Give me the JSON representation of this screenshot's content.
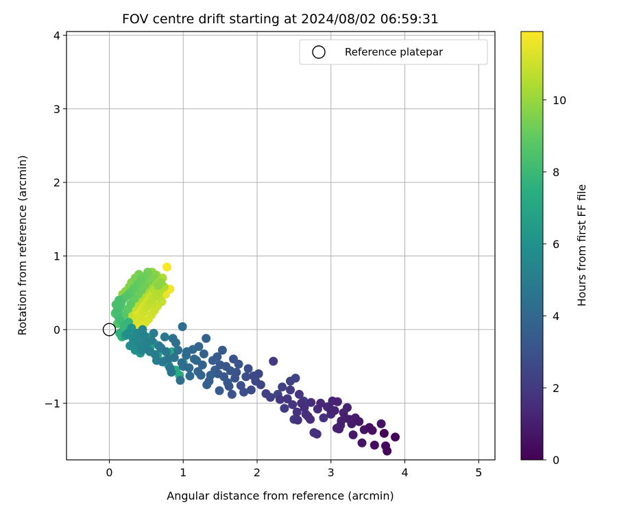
{
  "chart_data": {
    "type": "scatter",
    "title": "FOV centre drift starting at 2024/08/02 06:59:31",
    "xlabel": "Angular distance from reference (arcmin)",
    "ylabel": "Rotation from reference (arcmin)",
    "xlim": [
      -0.58,
      5.22
    ],
    "ylim": [
      -1.77,
      4.05
    ],
    "xticks": [
      0,
      1,
      2,
      3,
      4,
      5
    ],
    "yticks": [
      -1,
      0,
      1,
      2,
      3,
      4
    ],
    "grid": true,
    "legend": {
      "placement": "top-right",
      "entries": [
        "Reference platepar"
      ]
    },
    "colorbar": {
      "label": "Hours from first FF file",
      "colormap": "viridis",
      "range": [
        0,
        11.9
      ],
      "ticks": [
        0,
        2,
        4,
        6,
        8,
        10
      ]
    },
    "reference_point": {
      "x": 0.0,
      "y": 0.0,
      "marker": "open-circle"
    },
    "series": [
      {
        "points": [
          [
            3.72,
            -1.41
          ],
          [
            3.87,
            -1.46
          ],
          [
            3.76,
            -1.65
          ],
          [
            3.74,
            -1.58
          ],
          [
            3.59,
            -1.57
          ],
          [
            3.52,
            -1.33
          ],
          [
            3.68,
            -1.28
          ],
          [
            3.42,
            -1.54
          ],
          [
            3.3,
            -1.43
          ],
          [
            3.25,
            -1.22
          ],
          [
            3.13,
            -1.3
          ],
          [
            3.08,
            -1.34
          ],
          [
            3.17,
            -1.13
          ],
          [
            3.22,
            -1.06
          ],
          [
            3.02,
            -0.97
          ],
          [
            3.09,
            -0.98
          ],
          [
            2.95,
            -1.05
          ],
          [
            3.0,
            -1.15
          ],
          [
            2.82,
            -1.08
          ],
          [
            2.73,
            -0.99
          ],
          [
            2.64,
            -1.06
          ],
          [
            2.9,
            -1.2
          ],
          [
            2.81,
            -1.42
          ],
          [
            2.77,
            -1.4
          ],
          [
            2.54,
            -1.12
          ],
          [
            2.48,
            -1.02
          ],
          [
            2.41,
            -0.94
          ],
          [
            2.57,
            -0.88
          ],
          [
            2.31,
            -0.95
          ],
          [
            2.22,
            -0.43
          ],
          [
            2.45,
            -0.82
          ],
          [
            2.37,
            -1.07
          ],
          [
            2.5,
            -1.22
          ],
          [
            2.63,
            -0.97
          ],
          [
            2.18,
            -0.92
          ],
          [
            2.12,
            -0.87
          ],
          [
            3.05,
            -1.1
          ],
          [
            3.33,
            -1.2
          ],
          [
            3.45,
            -1.36
          ],
          [
            3.56,
            -1.37
          ],
          [
            2.66,
            -1.15
          ],
          [
            2.72,
            -1.22
          ],
          [
            3.14,
            -1.24
          ],
          [
            3.19,
            -1.2
          ],
          [
            2.86,
            -1.0
          ],
          [
            2.99,
            -1.08
          ],
          [
            3.11,
            -1.35
          ],
          [
            3.28,
            -1.28
          ],
          [
            2.34,
            -0.78
          ],
          [
            2.45,
            -0.7
          ],
          [
            2.52,
            -0.66
          ],
          [
            2.28,
            -0.88
          ],
          [
            2.6,
            -1.0
          ],
          [
            2.69,
            -1.18
          ],
          [
            2.55,
            -1.23
          ],
          [
            3.38,
            -1.25
          ]
        ],
        "hours": [
          0.05,
          0.1,
          0.2,
          0.3,
          0.4,
          0.5,
          0.6,
          0.7,
          0.8,
          0.9,
          1.0,
          1.05,
          1.1,
          1.15,
          1.2,
          1.25,
          1.3,
          1.35,
          1.4,
          1.45,
          1.5,
          1.55,
          1.6,
          1.65,
          1.7,
          1.75,
          1.8,
          1.85,
          1.9,
          1.95,
          2.0,
          2.05,
          2.1,
          2.15,
          2.2,
          2.25,
          1.22,
          0.95,
          0.65,
          0.45,
          1.52,
          1.48,
          1.08,
          1.02,
          1.28,
          1.18,
          1.12,
          0.88,
          2.3,
          2.35,
          2.4,
          2.45,
          1.62,
          1.58,
          1.68,
          0.78
        ]
      },
      {
        "points": [
          [
            2.05,
            -0.75
          ],
          [
            1.98,
            -0.7
          ],
          [
            1.92,
            -0.82
          ],
          [
            1.85,
            -0.64
          ],
          [
            1.78,
            -0.76
          ],
          [
            1.72,
            -0.58
          ],
          [
            1.66,
            -0.88
          ],
          [
            1.6,
            -0.72
          ],
          [
            1.55,
            -0.64
          ],
          [
            1.49,
            -0.83
          ],
          [
            1.43,
            -0.55
          ],
          [
            1.37,
            -0.62
          ],
          [
            1.32,
            -0.75
          ],
          [
            1.26,
            -0.48
          ],
          [
            1.2,
            -0.57
          ],
          [
            1.15,
            -0.4
          ],
          [
            1.09,
            -0.63
          ],
          [
            1.04,
            -0.35
          ],
          [
            0.98,
            -0.45
          ],
          [
            0.93,
            -0.28
          ],
          [
            0.88,
            -0.38
          ],
          [
            0.82,
            -0.52
          ],
          [
            0.77,
            -0.3
          ],
          [
            0.72,
            -0.44
          ],
          [
            0.67,
            -0.22
          ],
          [
            0.62,
            -0.34
          ],
          [
            0.57,
            -0.15
          ],
          [
            0.52,
            -0.27
          ],
          [
            0.47,
            -0.08
          ],
          [
            0.42,
            -0.2
          ],
          [
            0.37,
            -0.05
          ],
          [
            0.34,
            -0.18
          ],
          [
            0.99,
            0.04
          ],
          [
            1.31,
            -0.12
          ],
          [
            1.53,
            -0.28
          ],
          [
            1.75,
            -0.47
          ],
          [
            1.64,
            -0.56
          ],
          [
            1.88,
            -0.53
          ],
          [
            2.02,
            -0.6
          ],
          [
            1.46,
            -0.37
          ],
          [
            1.21,
            -0.23
          ],
          [
            0.9,
            -0.18
          ],
          [
            0.75,
            -0.1
          ],
          [
            1.05,
            -0.3
          ],
          [
            1.13,
            -0.27
          ],
          [
            1.4,
            -0.42
          ],
          [
            1.58,
            -0.5
          ],
          [
            1.7,
            -0.66
          ],
          [
            1.82,
            -0.85
          ],
          [
            1.95,
            -0.63
          ],
          [
            0.64,
            -0.42
          ],
          [
            0.84,
            -0.58
          ],
          [
            0.96,
            -0.69
          ],
          [
            1.08,
            -0.52
          ],
          [
            1.24,
            -0.62
          ],
          [
            1.35,
            -0.7
          ],
          [
            1.47,
            -0.6
          ],
          [
            1.62,
            -0.77
          ],
          [
            0.55,
            -0.3
          ],
          [
            0.44,
            -0.28
          ],
          [
            0.39,
            -0.12
          ],
          [
            0.7,
            -0.25
          ],
          [
            0.8,
            -0.4
          ],
          [
            1.0,
            -0.5
          ],
          [
            1.18,
            -0.42
          ],
          [
            1.28,
            -0.33
          ],
          [
            1.5,
            -0.48
          ],
          [
            1.68,
            -0.4
          ],
          [
            0.86,
            -0.12
          ],
          [
            0.6,
            -0.05
          ],
          [
            0.5,
            -0.17
          ],
          [
            0.45,
            -0.0
          ]
        ],
        "hours": [
          2.5,
          2.6,
          2.7,
          2.8,
          2.9,
          3.0,
          3.1,
          3.2,
          3.3,
          3.4,
          3.5,
          3.6,
          3.7,
          3.8,
          3.9,
          4.0,
          4.1,
          4.2,
          4.3,
          4.4,
          4.5,
          4.6,
          4.7,
          4.8,
          4.9,
          5.0,
          5.1,
          5.2,
          5.3,
          5.4,
          5.5,
          5.6,
          4.3,
          3.75,
          3.35,
          3.0,
          3.15,
          2.8,
          2.55,
          3.4,
          3.85,
          4.35,
          4.7,
          4.15,
          4.05,
          3.5,
          3.2,
          3.05,
          2.85,
          2.65,
          4.95,
          4.55,
          4.3,
          4.1,
          3.8,
          3.6,
          3.4,
          3.15,
          5.1,
          5.3,
          5.45,
          4.8,
          4.5,
          4.25,
          3.95,
          3.75,
          3.35,
          3.05,
          4.45,
          5.0,
          5.25,
          5.35
        ]
      },
      {
        "points": [
          [
            0.32,
            -0.12
          ],
          [
            0.28,
            -0.22
          ],
          [
            0.25,
            -0.05
          ],
          [
            0.35,
            -0.28
          ],
          [
            0.3,
            0.02
          ],
          [
            0.22,
            -0.08
          ],
          [
            0.38,
            -0.15
          ],
          [
            0.42,
            -0.32
          ],
          [
            0.46,
            -0.2
          ],
          [
            0.5,
            -0.1
          ],
          [
            0.55,
            -0.25
          ],
          [
            0.6,
            -0.18
          ],
          [
            0.65,
            -0.35
          ],
          [
            0.7,
            -0.28
          ],
          [
            0.75,
            -0.42
          ],
          [
            0.8,
            -0.48
          ],
          [
            0.85,
            -0.3
          ],
          [
            0.9,
            -0.55
          ],
          [
            0.95,
            -0.62
          ],
          [
            1.0,
            -0.45
          ],
          [
            0.26,
            0.1
          ],
          [
            0.2,
            0.05
          ],
          [
            0.18,
            -0.02
          ],
          [
            0.15,
            0.12
          ],
          [
            0.12,
            0.18
          ],
          [
            0.1,
            0.25
          ],
          [
            0.14,
            0.3
          ],
          [
            0.16,
            0.36
          ],
          [
            0.19,
            0.42
          ],
          [
            0.24,
            0.46
          ],
          [
            0.28,
            0.5
          ],
          [
            0.33,
            0.56
          ],
          [
            0.38,
            0.62
          ],
          [
            0.43,
            0.68
          ],
          [
            0.47,
            0.72
          ],
          [
            0.52,
            0.78
          ],
          [
            0.4,
            0.75
          ],
          [
            0.35,
            0.7
          ],
          [
            0.3,
            0.64
          ],
          [
            0.27,
            0.58
          ],
          [
            0.22,
            0.52
          ],
          [
            0.18,
            0.48
          ],
          [
            0.13,
            0.4
          ],
          [
            0.09,
            0.34
          ],
          [
            0.08,
            0.22
          ],
          [
            0.11,
            0.08
          ],
          [
            0.14,
            -0.05
          ],
          [
            0.17,
            -0.1
          ],
          [
            0.2,
            0.2
          ],
          [
            0.25,
            0.28
          ],
          [
            0.29,
            0.35
          ],
          [
            0.34,
            0.42
          ],
          [
            0.39,
            0.48
          ],
          [
            0.44,
            0.54
          ],
          [
            0.48,
            0.6
          ],
          [
            0.53,
            0.66
          ],
          [
            0.57,
            0.7
          ],
          [
            0.61,
            0.74
          ],
          [
            0.66,
            0.6
          ],
          [
            0.7,
            0.64
          ]
        ],
        "hours": [
          5.6,
          5.7,
          5.8,
          5.9,
          6.0,
          6.1,
          6.2,
          6.3,
          6.4,
          6.5,
          6.6,
          6.7,
          6.8,
          6.9,
          7.0,
          7.1,
          7.2,
          7.3,
          7.4,
          7.5,
          7.8,
          7.9,
          8.0,
          8.1,
          8.2,
          8.3,
          8.4,
          8.5,
          8.6,
          8.7,
          8.8,
          8.9,
          9.0,
          9.1,
          9.2,
          9.3,
          9.4,
          9.5,
          9.6,
          9.7,
          9.8,
          9.9,
          8.35,
          8.45,
          8.55,
          8.65,
          7.6,
          7.7,
          8.75,
          8.85,
          8.95,
          9.05,
          9.15,
          9.25,
          9.35,
          9.45,
          9.55,
          9.65,
          9.75,
          9.85
        ]
      },
      {
        "points": [
          [
            0.58,
            0.78
          ],
          [
            0.62,
            0.72
          ],
          [
            0.66,
            0.66
          ],
          [
            0.7,
            0.62
          ],
          [
            0.74,
            0.58
          ],
          [
            0.68,
            0.52
          ],
          [
            0.63,
            0.46
          ],
          [
            0.58,
            0.4
          ],
          [
            0.54,
            0.35
          ],
          [
            0.5,
            0.3
          ],
          [
            0.46,
            0.24
          ],
          [
            0.42,
            0.18
          ],
          [
            0.38,
            0.12
          ],
          [
            0.34,
            0.08
          ],
          [
            0.3,
            0.16
          ],
          [
            0.26,
            0.22
          ],
          [
            0.32,
            0.3
          ],
          [
            0.36,
            0.36
          ],
          [
            0.4,
            0.42
          ],
          [
            0.44,
            0.48
          ],
          [
            0.48,
            0.54
          ],
          [
            0.52,
            0.6
          ],
          [
            0.56,
            0.64
          ],
          [
            0.6,
            0.56
          ],
          [
            0.64,
            0.5
          ],
          [
            0.67,
            0.44
          ],
          [
            0.71,
            0.38
          ],
          [
            0.65,
            0.32
          ],
          [
            0.61,
            0.26
          ],
          [
            0.57,
            0.2
          ],
          [
            0.53,
            0.14
          ],
          [
            0.49,
            0.1
          ],
          [
            0.45,
            0.04
          ],
          [
            0.41,
            0.0
          ],
          [
            0.37,
            -0.03
          ],
          [
            0.33,
            0.03
          ],
          [
            0.29,
            0.09
          ],
          [
            0.78,
            0.85
          ],
          [
            0.82,
            0.55
          ],
          [
            0.76,
            0.48
          ],
          [
            0.72,
            0.7
          ],
          [
            0.64,
            0.74
          ],
          [
            0.55,
            0.5
          ],
          [
            0.51,
            0.44
          ],
          [
            0.47,
            0.38
          ],
          [
            0.43,
            0.32
          ],
          [
            0.39,
            0.26
          ],
          [
            0.35,
            0.2
          ]
        ],
        "hours": [
          10.0,
          10.1,
          10.2,
          10.3,
          10.4,
          10.5,
          10.6,
          10.7,
          10.8,
          10.9,
          11.0,
          11.1,
          11.2,
          11.3,
          10.95,
          10.85,
          10.75,
          10.65,
          10.55,
          10.45,
          10.35,
          10.25,
          10.15,
          10.5,
          10.6,
          10.7,
          10.8,
          10.9,
          11.0,
          11.1,
          11.2,
          11.3,
          11.4,
          11.5,
          11.6,
          11.45,
          11.35,
          11.85,
          11.7,
          11.55,
          10.4,
          10.2,
          10.9,
          11.05,
          11.15,
          11.25,
          11.35,
          11.45
        ]
      }
    ]
  }
}
